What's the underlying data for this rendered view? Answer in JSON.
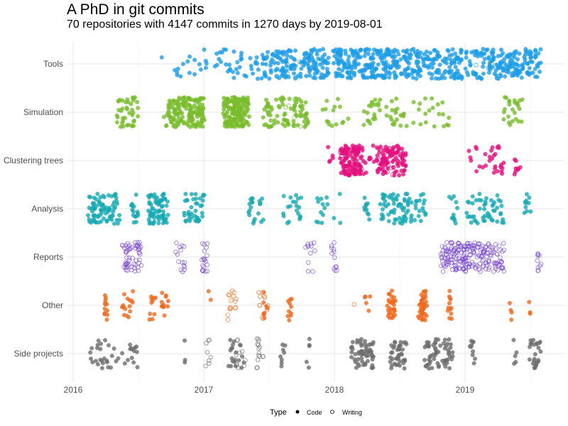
{
  "chart_data": {
    "type": "scatter",
    "title": "A PhD in git commits",
    "subtitle": "70 repositories with 4147 commits in 1270 days by 2019-08-01",
    "xlabel": "",
    "ylabel": "",
    "xlim": [
      2015.95,
      2019.75
    ],
    "x_ticks": [
      "2016",
      "2017",
      "2018",
      "2019"
    ],
    "grid": true,
    "legend": {
      "title": "Type",
      "position": "bottom",
      "entries": [
        {
          "label": "Code",
          "shape": "filled-circle"
        },
        {
          "label": "Writing",
          "shape": "open-circle"
        }
      ]
    },
    "categories": [
      "Tools",
      "Simulation",
      "Clustering trees",
      "Analysis",
      "Reports",
      "Other",
      "Side projects"
    ],
    "colors": {
      "Tools": "#1E9DE6",
      "Simulation": "#79BC2C",
      "Clustering trees": "#E4107E",
      "Analysis": "#17A9B4",
      "Reports": "#7B4BCF",
      "Other": "#EE6A1D",
      "Side projects": "#6E6E6E"
    },
    "cluster_fields": [
      "from_year",
      "to_year",
      "commits",
      "type"
    ],
    "series": [
      {
        "name": "Tools",
        "clusters": [
          [
            2016.68,
            2017.2,
            30,
            "Code"
          ],
          [
            2017.2,
            2017.45,
            25,
            "Code"
          ],
          [
            2017.45,
            2017.95,
            150,
            "Code"
          ],
          [
            2017.5,
            2017.9,
            15,
            "Writing"
          ],
          [
            2018.0,
            2018.5,
            200,
            "Code"
          ],
          [
            2018.5,
            2018.85,
            100,
            "Code"
          ],
          [
            2018.85,
            2019.58,
            220,
            "Code"
          ],
          [
            2019.0,
            2019.4,
            6,
            "Writing"
          ]
        ]
      },
      {
        "name": "Simulation",
        "clusters": [
          [
            2016.33,
            2016.5,
            40,
            "Code"
          ],
          [
            2016.7,
            2017.0,
            150,
            "Code"
          ],
          [
            2017.15,
            2017.35,
            150,
            "Code"
          ],
          [
            2017.45,
            2017.8,
            80,
            "Code"
          ],
          [
            2017.6,
            2017.75,
            10,
            "Writing"
          ],
          [
            2017.9,
            2018.1,
            15,
            "Code"
          ],
          [
            2018.22,
            2018.35,
            20,
            "Code"
          ],
          [
            2018.4,
            2018.55,
            20,
            "Code"
          ],
          [
            2018.6,
            2018.9,
            20,
            "Code"
          ],
          [
            2019.28,
            2019.45,
            25,
            "Code"
          ]
        ]
      },
      {
        "name": "Clustering trees",
        "clusters": [
          [
            2017.95,
            2018.0,
            5,
            "Code"
          ],
          [
            2018.05,
            2018.2,
            100,
            "Code"
          ],
          [
            2018.05,
            2018.2,
            20,
            "Writing"
          ],
          [
            2018.2,
            2018.3,
            15,
            "Code"
          ],
          [
            2018.33,
            2018.5,
            70,
            "Code"
          ],
          [
            2018.33,
            2018.5,
            15,
            "Writing"
          ],
          [
            2018.5,
            2018.55,
            20,
            "Code"
          ],
          [
            2019.02,
            2019.3,
            30,
            "Code"
          ],
          [
            2019.38,
            2019.42,
            8,
            "Code"
          ]
        ]
      },
      {
        "name": "Analysis",
        "clusters": [
          [
            2016.12,
            2016.35,
            80,
            "Code"
          ],
          [
            2016.45,
            2016.5,
            15,
            "Code"
          ],
          [
            2016.58,
            2016.72,
            70,
            "Code"
          ],
          [
            2016.85,
            2017.0,
            40,
            "Code"
          ],
          [
            2017.35,
            2017.45,
            20,
            "Code"
          ],
          [
            2017.6,
            2017.75,
            20,
            "Code"
          ],
          [
            2017.85,
            2018.05,
            15,
            "Code"
          ],
          [
            2018.23,
            2018.27,
            10,
            "Code"
          ],
          [
            2018.35,
            2018.7,
            80,
            "Code"
          ],
          [
            2018.88,
            2018.95,
            12,
            "Code"
          ],
          [
            2019.0,
            2019.3,
            50,
            "Code"
          ],
          [
            2019.46,
            2019.5,
            10,
            "Code"
          ]
        ]
      },
      {
        "name": "Reports",
        "clusters": [
          [
            2016.38,
            2016.52,
            60,
            "Writing"
          ],
          [
            2016.78,
            2016.85,
            15,
            "Writing"
          ],
          [
            2016.98,
            2017.03,
            20,
            "Writing"
          ],
          [
            2017.78,
            2017.85,
            12,
            "Writing"
          ],
          [
            2017.98,
            2018.03,
            12,
            "Writing"
          ],
          [
            2018.82,
            2019.3,
            220,
            "Writing"
          ],
          [
            2019.55,
            2019.58,
            10,
            "Writing"
          ]
        ]
      },
      {
        "name": "Other",
        "clusters": [
          [
            2016.24,
            2016.27,
            12,
            "Code"
          ],
          [
            2016.38,
            2016.45,
            15,
            "Code"
          ],
          [
            2016.58,
            2016.63,
            10,
            "Code"
          ],
          [
            2016.68,
            2016.72,
            12,
            "Code"
          ],
          [
            2017.04,
            2017.06,
            2,
            "Code"
          ],
          [
            2017.18,
            2017.25,
            15,
            "Writing"
          ],
          [
            2017.42,
            2017.5,
            12,
            "Writing"
          ],
          [
            2017.45,
            2017.5,
            8,
            "Code"
          ],
          [
            2017.64,
            2017.67,
            10,
            "Code"
          ],
          [
            2018.14,
            2018.16,
            1,
            "Writing"
          ],
          [
            2018.23,
            2018.27,
            5,
            "Code"
          ],
          [
            2018.4,
            2018.48,
            30,
            "Code"
          ],
          [
            2018.65,
            2018.7,
            40,
            "Code"
          ],
          [
            2018.87,
            2018.9,
            12,
            "Code"
          ],
          [
            2019.34,
            2019.36,
            4,
            "Code"
          ],
          [
            2019.49,
            2019.51,
            3,
            "Code"
          ]
        ]
      },
      {
        "name": "Side projects",
        "clusters": [
          [
            2016.1,
            2016.5,
            40,
            "Code"
          ],
          [
            2016.84,
            2016.86,
            3,
            "Code"
          ],
          [
            2017.0,
            2017.05,
            8,
            "Writing"
          ],
          [
            2017.18,
            2017.3,
            20,
            "Code"
          ],
          [
            2017.25,
            2017.32,
            10,
            "Writing"
          ],
          [
            2017.4,
            2017.45,
            15,
            "Writing"
          ],
          [
            2017.59,
            2017.62,
            8,
            "Code"
          ],
          [
            2017.79,
            2017.82,
            5,
            "Code"
          ],
          [
            2018.12,
            2018.3,
            60,
            "Code"
          ],
          [
            2018.43,
            2018.55,
            40,
            "Code"
          ],
          [
            2018.7,
            2018.9,
            60,
            "Code"
          ],
          [
            2019.04,
            2019.07,
            10,
            "Code"
          ],
          [
            2019.37,
            2019.4,
            5,
            "Code"
          ],
          [
            2019.5,
            2019.58,
            25,
            "Code"
          ]
        ]
      }
    ]
  }
}
